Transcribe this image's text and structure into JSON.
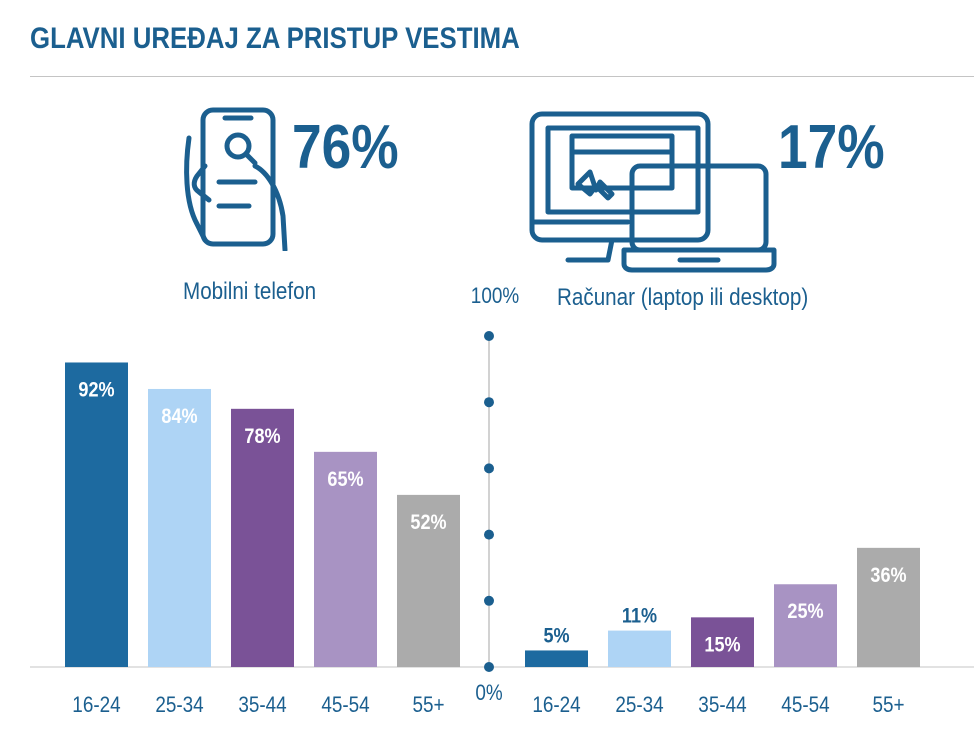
{
  "title": "GLAVNI UREĐAJ ZA PRISTUP VESTIMA",
  "devices": {
    "mobile": {
      "icon": "smartphone-hand-icon",
      "percent": "76%",
      "label": "Mobilni telefon"
    },
    "computer": {
      "icon": "computer-laptop-icon",
      "percent": "17%",
      "label": "Računar (laptop ili desktop)"
    }
  },
  "colors": {
    "title": "#1b5f8f",
    "age_colors": [
      "#1d6aa0",
      "#aed4f5",
      "#7a5297",
      "#a893c3",
      "#ababab"
    ],
    "axis": "#1b5f8f"
  },
  "chart_data": {
    "type": "bar",
    "categories": [
      "16-24",
      "25-34",
      "35-44",
      "45-54",
      "55+"
    ],
    "ylim": [
      0,
      100
    ],
    "y_ticks": [
      "100%",
      "0%"
    ],
    "series": [
      {
        "name": "Mobilni telefon",
        "values": [
          92,
          84,
          78,
          65,
          52
        ],
        "labels": [
          "92%",
          "84%",
          "78%",
          "65%",
          "52%"
        ]
      },
      {
        "name": "Računar (laptop ili desktop)",
        "values": [
          5,
          11,
          15,
          25,
          36
        ],
        "labels": [
          "5%",
          "11%",
          "15%",
          "25%",
          "36%"
        ]
      }
    ],
    "legend": "none",
    "grid": false
  }
}
